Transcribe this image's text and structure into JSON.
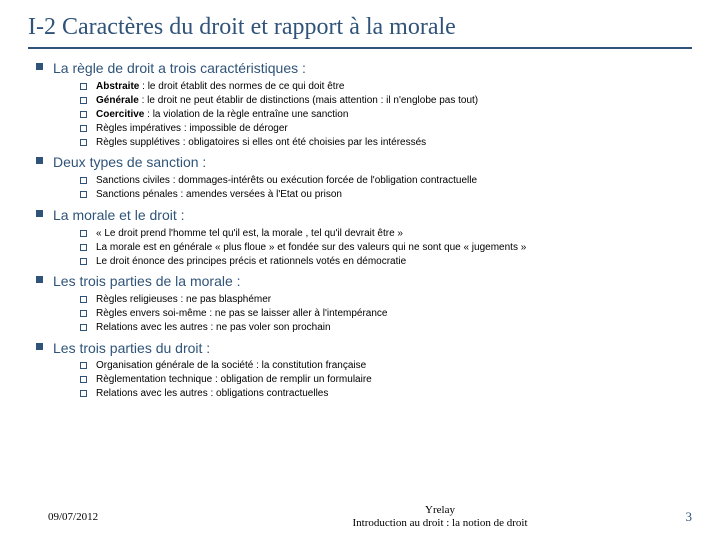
{
  "title": "I-2 Caractères du droit et rapport à la morale",
  "colors": {
    "accent": "#305479",
    "text": "#000000",
    "background": "#ffffff"
  },
  "sections": [
    {
      "heading": "La règle de droit a trois caractéristiques :",
      "items": [
        {
          "bold": "Abstraite",
          "text": " : le droit établit des normes de ce qui doit être"
        },
        {
          "bold": "Générale",
          "text": " : le droit ne peut établir de distinctions (mais attention : il n'englobe pas tout)"
        },
        {
          "bold": "Coercitive",
          "text": " : la violation de la règle entraîne une sanction"
        },
        {
          "bold": "",
          "text": "Règles impératives : impossible de déroger"
        },
        {
          "bold": "",
          "text": "Règles supplétives : obligatoires si elles ont été choisies par les intéressés"
        }
      ]
    },
    {
      "heading": "Deux types de sanction :",
      "items": [
        {
          "bold": "",
          "text": "Sanctions civiles : dommages-intérêts ou exécution forcée de l'obligation contractuelle"
        },
        {
          "bold": "",
          "text": "Sanctions pénales : amendes versées à l'Etat ou prison"
        }
      ]
    },
    {
      "heading": "La morale et le droit :",
      "items": [
        {
          "bold": "",
          "text": "« Le droit prend l'homme tel qu'il est, la morale , tel qu'il devrait être »"
        },
        {
          "bold": "",
          "text": "La morale est en générale « plus floue » et fondée sur des valeurs qui ne sont que « jugements »"
        },
        {
          "bold": "",
          "text": "Le droit énonce des principes précis et rationnels votés en démocratie"
        }
      ]
    },
    {
      "heading": "Les trois parties de la morale :",
      "items": [
        {
          "bold": "",
          "text": "Règles religieuses : ne pas blasphémer"
        },
        {
          "bold": "",
          "text": "Règles envers soi-même : ne pas se laisser aller à l'intempérance"
        },
        {
          "bold": "",
          "text": "Relations avec les autres : ne pas voler son prochain"
        }
      ]
    },
    {
      "heading": "Les trois parties du droit :",
      "items": [
        {
          "bold": "",
          "text": "Organisation générale de la société : la constitution française"
        },
        {
          "bold": "",
          "text": "Règlementation technique : obligation de remplir un formulaire"
        },
        {
          "bold": "",
          "text": "Relations avec les autres : obligations contractuelles"
        }
      ]
    }
  ],
  "footer": {
    "date": "09/07/2012",
    "center1": "Yrelay",
    "center2": "Introduction au droit : la notion de droit",
    "page": "3"
  }
}
